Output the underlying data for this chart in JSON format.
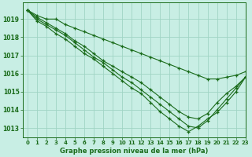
{
  "title": "Graphe pression niveau de la mer (hPa)",
  "bg_color": "#c8eee4",
  "grid_color": "#a0d4c4",
  "line_color": "#1a6b1a",
  "xlim": [
    -0.5,
    23
  ],
  "ylim": [
    1012.5,
    1019.9
  ],
  "yticks": [
    1013,
    1014,
    1015,
    1016,
    1017,
    1018,
    1019
  ],
  "xticks": [
    0,
    1,
    2,
    3,
    4,
    5,
    6,
    7,
    8,
    9,
    10,
    11,
    12,
    13,
    14,
    15,
    16,
    17,
    18,
    19,
    20,
    21,
    22,
    23
  ],
  "series": [
    [
      1019.5,
      1019.2,
      1019.0,
      1019.0,
      1018.7,
      1018.5,
      1018.3,
      1018.1,
      1017.9,
      1017.7,
      1017.5,
      1017.3,
      1017.1,
      1016.9,
      1016.7,
      1016.5,
      1016.3,
      1016.1,
      1015.9,
      1015.7,
      1015.7,
      1015.8,
      1015.9,
      1016.1
    ],
    [
      1019.5,
      1019.1,
      1018.8,
      1018.5,
      1018.2,
      1017.8,
      1017.5,
      1017.1,
      1016.7,
      1016.4,
      1016.1,
      1015.8,
      1015.5,
      1015.1,
      1014.7,
      1014.3,
      1013.9,
      1013.6,
      1013.5,
      1013.8,
      1014.4,
      1014.9,
      1015.3,
      1015.8
    ],
    [
      1019.5,
      1019.0,
      1018.7,
      1018.4,
      1018.1,
      1017.7,
      1017.3,
      1016.9,
      1016.6,
      1016.2,
      1015.8,
      1015.5,
      1015.1,
      1014.7,
      1014.3,
      1013.9,
      1013.5,
      1013.1,
      1013.0,
      1013.4,
      1014.0,
      1014.6,
      1015.2,
      1015.8
    ],
    [
      1019.5,
      1018.9,
      1018.6,
      1018.2,
      1017.9,
      1017.5,
      1017.1,
      1016.8,
      1016.4,
      1016.0,
      1015.6,
      1015.2,
      1014.9,
      1014.4,
      1013.9,
      1013.5,
      1013.1,
      1012.8,
      1013.1,
      1013.5,
      1013.85,
      1014.4,
      1015.0,
      1015.8
    ]
  ]
}
